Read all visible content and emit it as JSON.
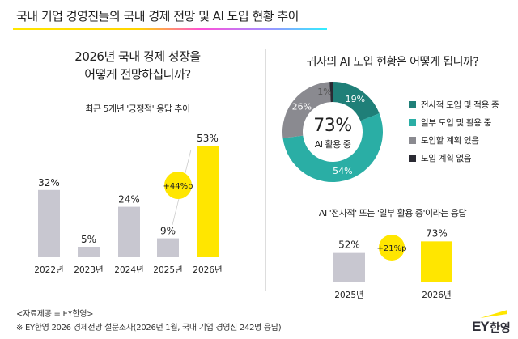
{
  "title": "국내 기업 경영진들의 국내 경제 전망 및 AI 도입 현황 추이",
  "left": {
    "question_line1": "2026년 국내 경제 성장을",
    "question_line2": "어떻게 전망하십니까?",
    "subtitle": "최근 5개년 '긍정적' 응답 추이",
    "badge": "+44%p"
  },
  "right": {
    "question": "귀사의 AI 도입 현황은 어떻게 됩니까?",
    "center_value": "73%",
    "center_label": "AI 활용 중",
    "subtitle": "AI '전사적' 또는 '일부 활용 중'이라는 응답",
    "badge": "+21%p"
  },
  "chart_data": [
    {
      "type": "bar",
      "categories": [
        "2022년",
        "2023년",
        "2024년",
        "2025년",
        "2026년"
      ],
      "values": [
        32,
        5,
        24,
        9,
        53
      ],
      "value_labels": [
        "32%",
        "5%",
        "24%",
        "9%",
        "53%"
      ],
      "colors": [
        "#c8c7d0",
        "#c8c7d0",
        "#c8c7d0",
        "#c8c7d0",
        "#ffe600"
      ],
      "annotation": "+44%p"
    },
    {
      "type": "pie",
      "donut": true,
      "categories": [
        "전사적 도입 및 적용 중",
        "일부 도입 및 활용 중",
        "도입할 계획 있음",
        "도입 계획 없음"
      ],
      "values": [
        19,
        54,
        26,
        1
      ],
      "value_labels": [
        "19%",
        "54%",
        "26%",
        "1%"
      ],
      "colors": [
        "#1f7f78",
        "#2aaea5",
        "#8a8a90",
        "#2a2a33"
      ]
    },
    {
      "type": "bar",
      "categories": [
        "2025년",
        "2026년"
      ],
      "values": [
        52,
        73
      ],
      "value_labels": [
        "52%",
        "73%"
      ],
      "colors": [
        "#c8c7d0",
        "#ffe600"
      ],
      "annotation": "+21%p"
    }
  ],
  "footer": {
    "source": "<자료제공 = EY한영>",
    "note": "※ EY한영 2026 경제전망 설문조사(2026년 1월, 국내 기업 경영진 242명 응답)"
  },
  "logo": {
    "text_ey": "EY",
    "text_kr": "한영"
  }
}
